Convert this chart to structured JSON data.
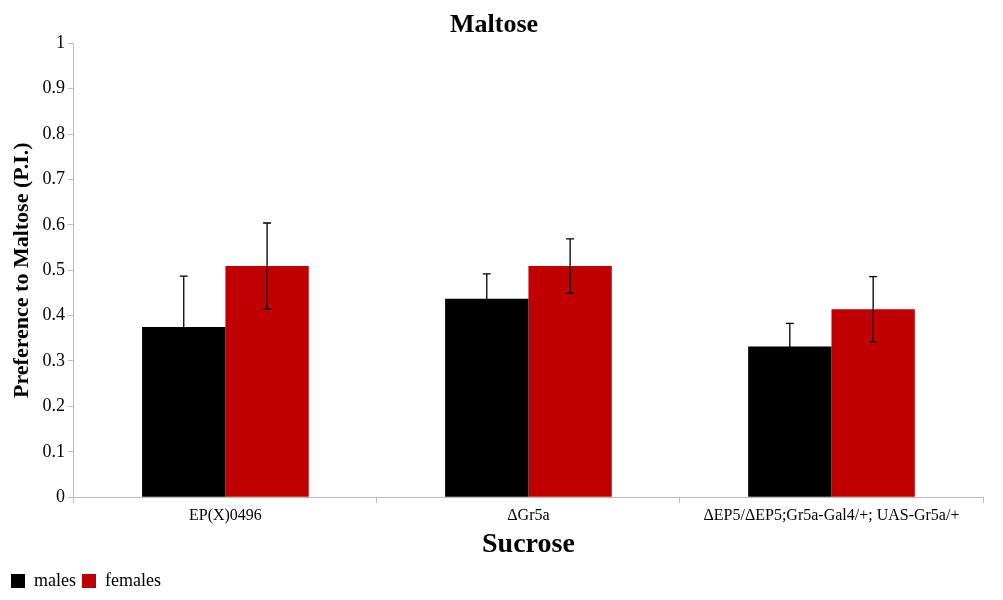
{
  "chart_data": {
    "type": "bar",
    "title": "Maltose",
    "xlabel": "Sucrose",
    "ylabel": "Preference to Maltose (P.I.)",
    "categories": [
      "EP(X)0496",
      "ΔGr5a",
      "ΔEP5/ΔEP5;Gr5a-Gal4/+; UAS-Gr5a/+"
    ],
    "series": [
      {
        "name": "males",
        "color": "#000000",
        "values": [
          0.375,
          0.437,
          0.332
        ],
        "errors": [
          0.112,
          0.055,
          0.051
        ]
      },
      {
        "name": "females",
        "color": "#c00000",
        "values": [
          0.509,
          0.509,
          0.414
        ],
        "errors": [
          0.095,
          0.06,
          0.072
        ]
      }
    ],
    "ylim": [
      0,
      1
    ],
    "yticks": [
      0,
      0.1,
      0.2,
      0.3,
      0.4,
      0.5,
      0.6,
      0.7,
      0.8,
      0.9,
      1
    ],
    "grid": false,
    "legend": "bottom left"
  }
}
